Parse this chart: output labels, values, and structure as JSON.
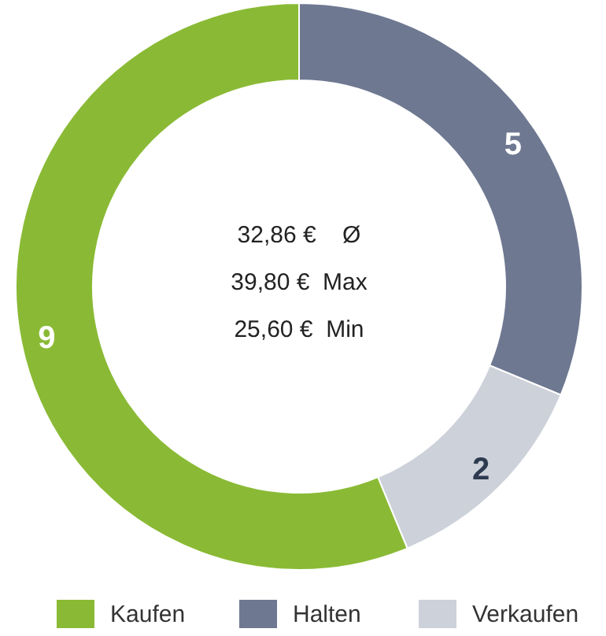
{
  "chart_data": {
    "type": "donut",
    "categories": [
      "Kaufen",
      "Halten",
      "Verkaufen"
    ],
    "values": [
      9,
      5,
      2
    ],
    "colors": [
      "#8aba35",
      "#6e7891",
      "#cdd1d9"
    ],
    "data_labels": true,
    "legend": "bottom",
    "annotations": [
      "32,86 €    Ø",
      "39,80 €  Max",
      "25,60 €  Min"
    ]
  }
}
